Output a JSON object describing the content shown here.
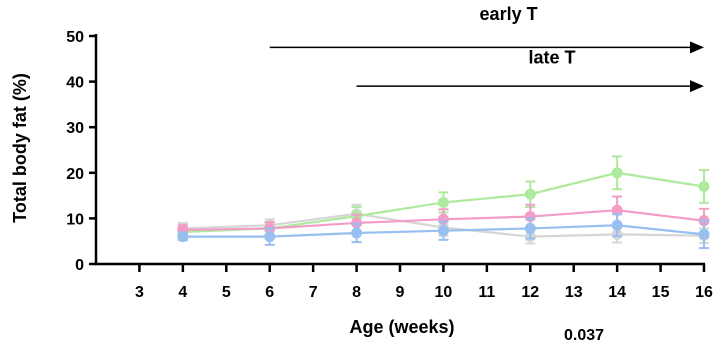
{
  "chart_data": {
    "type": "line",
    "title": "",
    "xlabel": "Age (weeks)",
    "ylabel": "Total body fat (%)",
    "xlim": [
      2,
      16
    ],
    "ylim": [
      0,
      50
    ],
    "x_ticks": [
      3,
      4,
      5,
      6,
      7,
      8,
      9,
      10,
      11,
      12,
      13,
      14,
      15,
      16
    ],
    "y_ticks": [
      0,
      10,
      20,
      30,
      40,
      50
    ],
    "grid": false,
    "legend": "none",
    "annotations": [
      {
        "text": "early T",
        "x_start": 6,
        "x_end": 16,
        "y": 47.5,
        "label_x": 11.5,
        "label_y": 53.5
      },
      {
        "text": "late T",
        "x_start": 8,
        "x_end": 16,
        "y": 39,
        "label_x": 12.5,
        "label_y": 44
      }
    ],
    "footnote": "0.037",
    "series": [
      {
        "color": "#d6d6d6",
        "x": [
          4,
          6,
          8,
          10,
          12,
          14,
          16
        ],
        "values": [
          7.8,
          8.5,
          11.0,
          8.0,
          6.0,
          6.5,
          6.2
        ],
        "errors": [
          1.2,
          1.3,
          2.0,
          1.8,
          1.5,
          1.8,
          1.6
        ]
      },
      {
        "color": "#aeea9d",
        "x": [
          4,
          6,
          8,
          10,
          12,
          14,
          16
        ],
        "values": [
          7.0,
          7.8,
          10.5,
          13.5,
          15.3,
          20.0,
          17.0
        ],
        "errors": [
          1.0,
          1.4,
          2.0,
          2.2,
          2.8,
          3.6,
          3.6
        ]
      },
      {
        "color": "#f29cc6",
        "x": [
          4,
          6,
          8,
          10,
          12,
          14,
          16
        ],
        "values": [
          7.5,
          7.8,
          9.0,
          9.8,
          10.4,
          11.8,
          9.5
        ],
        "errors": [
          1.0,
          1.4,
          1.8,
          2.2,
          2.6,
          3.0,
          2.6
        ]
      },
      {
        "color": "#97bff0",
        "x": [
          4,
          6,
          8,
          10,
          12,
          14,
          16
        ],
        "values": [
          6.0,
          6.0,
          6.8,
          7.3,
          7.8,
          8.5,
          6.5
        ],
        "errors": [
          0.8,
          1.8,
          2.0,
          2.0,
          2.2,
          2.4,
          3.0
        ]
      }
    ]
  }
}
